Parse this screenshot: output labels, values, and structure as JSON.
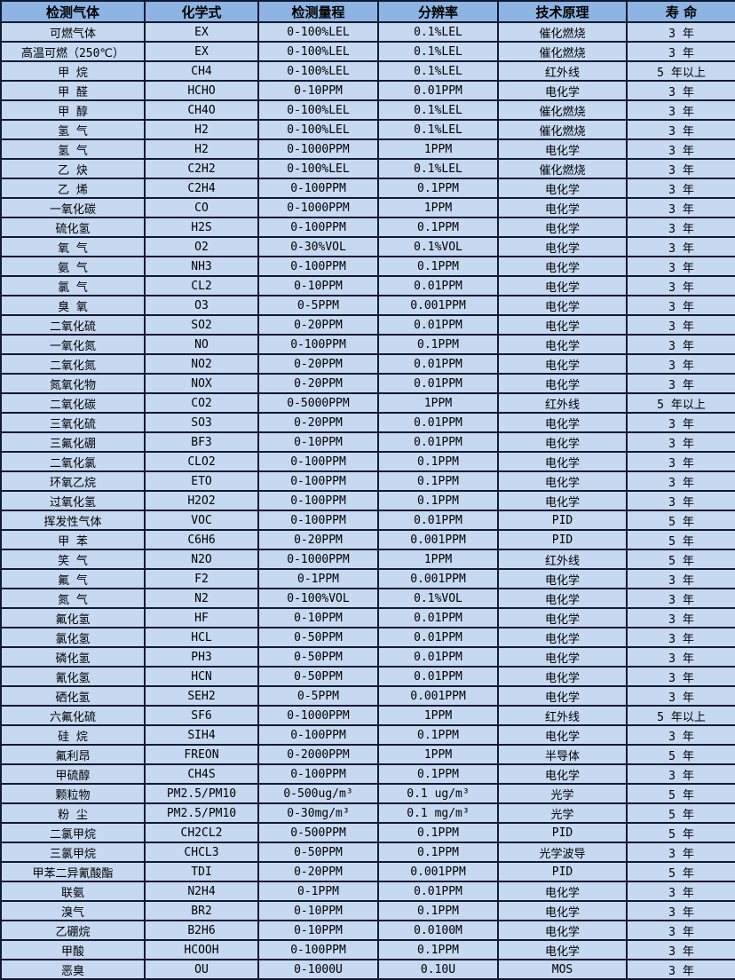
{
  "colors": {
    "header_bg": "#8db4e2",
    "row_bg": "#c6d9f1",
    "grid_border": "#121a33",
    "text": "#000000"
  },
  "table": {
    "columns": [
      {
        "key": "gas-name",
        "label": "检测气体"
      },
      {
        "key": "formula",
        "label": "化学式"
      },
      {
        "key": "range",
        "label": "检测量程"
      },
      {
        "key": "resolution",
        "label": "分辨率"
      },
      {
        "key": "principle",
        "label": "技术原理"
      },
      {
        "key": "lifespan",
        "label": "寿 命"
      }
    ],
    "rows": [
      [
        "可燃气体",
        "EX",
        "0-100%LEL",
        "0.1%LEL",
        "催化燃烧",
        "3 年"
      ],
      [
        "高温可燃（250℃）",
        "EX",
        "0-100%LEL",
        "0.1%LEL",
        "催化燃烧",
        "3 年"
      ],
      [
        "甲 烷",
        "CH4",
        "0-100%LEL",
        "0.1%LEL",
        "红外线",
        "5 年以上"
      ],
      [
        "甲 醛",
        "HCHO",
        "0-10PPM",
        "0.01PPM",
        "电化学",
        "3 年"
      ],
      [
        "甲 醇",
        "CH4O",
        "0-100%LEL",
        "0.1%LEL",
        "催化燃烧",
        "3 年"
      ],
      [
        "氢 气",
        "H2",
        "0-100%LEL",
        "0.1%LEL",
        "催化燃烧",
        "3 年"
      ],
      [
        "氢 气",
        "H2",
        "0-1000PPM",
        "1PPM",
        "电化学",
        "3 年"
      ],
      [
        "乙 炔",
        "C2H2",
        "0-100%LEL",
        "0.1%LEL",
        "催化燃烧",
        "3 年"
      ],
      [
        "乙 烯",
        "C2H4",
        "0-100PPM",
        "0.1PPM",
        "电化学",
        "3 年"
      ],
      [
        "一氧化碳",
        "CO",
        "0-1000PPM",
        "1PPM",
        "电化学",
        "3 年"
      ],
      [
        "硫化氢",
        "H2S",
        "0-100PPM",
        "0.1PPM",
        "电化学",
        "3 年"
      ],
      [
        "氧 气",
        "O2",
        "0-30%VOL",
        "0.1%VOL",
        "电化学",
        "3 年"
      ],
      [
        "氨 气",
        "NH3",
        "0-100PPM",
        "0.1PPM",
        "电化学",
        "3 年"
      ],
      [
        "氯 气",
        "CL2",
        "0-10PPM",
        "0.01PPM",
        "电化学",
        "3 年"
      ],
      [
        "臭 氧",
        "O3",
        "0-5PPM",
        "0.001PPM",
        "电化学",
        "3 年"
      ],
      [
        "二氧化硫",
        "SO2",
        "0-20PPM",
        "0.01PPM",
        "电化学",
        "3 年"
      ],
      [
        "一氧化氮",
        "NO",
        "0-100PPM",
        "0.1PPM",
        "电化学",
        "3 年"
      ],
      [
        "二氧化氮",
        "NO2",
        "0-20PPM",
        "0.01PPM",
        "电化学",
        "3 年"
      ],
      [
        "氮氧化物",
        "NOX",
        "0-20PPM",
        "0.01PPM",
        "电化学",
        "3 年"
      ],
      [
        "二氧化碳",
        "CO2",
        "0-5000PPM",
        "1PPM",
        "红外线",
        "5 年以上"
      ],
      [
        "三氧化硫",
        "SO3",
        "0-20PPM",
        "0.01PPM",
        "电化学",
        "3 年"
      ],
      [
        "三氟化硼",
        "BF3",
        "0-10PPM",
        "0.01PPM",
        "电化学",
        "3 年"
      ],
      [
        "二氧化氯",
        "CLO2",
        "0-100PPM",
        "0.1PPM",
        "电化学",
        "3 年"
      ],
      [
        "环氧乙烷",
        "ETO",
        "0-100PPM",
        "0.1PPM",
        "电化学",
        "3 年"
      ],
      [
        "过氧化氢",
        "H2O2",
        "0-100PPM",
        "0.1PPM",
        "电化学",
        "3 年"
      ],
      [
        "挥发性气体",
        "VOC",
        "0-100PPM",
        "0.01PPM",
        "PID",
        "5 年"
      ],
      [
        "甲 苯",
        "C6H6",
        "0-20PPM",
        "0.001PPM",
        "PID",
        "5 年"
      ],
      [
        "笑 气",
        "N2O",
        "0-1000PPM",
        "1PPM",
        "红外线",
        "5 年"
      ],
      [
        "氟 气",
        "F2",
        "0-1PPM",
        "0.001PPM",
        "电化学",
        "3 年"
      ],
      [
        "氮 气",
        "N2",
        "0-100%VOL",
        "0.1%VOL",
        "电化学",
        "3 年"
      ],
      [
        "氟化氢",
        "HF",
        "0-10PPM",
        "0.01PPM",
        "电化学",
        "3 年"
      ],
      [
        "氯化氢",
        "HCL",
        "0-50PPM",
        "0.01PPM",
        "电化学",
        "3 年"
      ],
      [
        "磷化氢",
        "PH3",
        "0-50PPM",
        "0.01PPM",
        "电化学",
        "3 年"
      ],
      [
        "氰化氢",
        "HCN",
        "0-50PPM",
        "0.01PPM",
        "电化学",
        "3 年"
      ],
      [
        "硒化氢",
        "SEH2",
        "0-5PPM",
        "0.001PPM",
        "电化学",
        "3 年"
      ],
      [
        "六氟化硫",
        "SF6",
        "0-1000PPM",
        "1PPM",
        "红外线",
        "5 年以上"
      ],
      [
        "硅 烷",
        "SIH4",
        "0-100PPM",
        "0.1PPM",
        "电化学",
        "3 年"
      ],
      [
        "氟利昂",
        "FREON",
        "0-2000PPM",
        "1PPM",
        "半导体",
        "5 年"
      ],
      [
        "甲硫醇",
        "CH4S",
        "0-100PPM",
        "0.1PPM",
        "电化学",
        "3 年"
      ],
      [
        "颗粒物",
        "PM2.5/PM10",
        "0-500ug/m³",
        "0.1 ug/m³",
        "光学",
        "5 年"
      ],
      [
        "粉 尘",
        "PM2.5/PM10",
        "0-30mg/m³",
        "0.1 mg/m³",
        "光学",
        "5 年"
      ],
      [
        "二氯甲烷",
        "CH2CL2",
        "0-500PPM",
        "0.1PPM",
        "PID",
        "5 年"
      ],
      [
        "三氯甲烷",
        "CHCL3",
        "0-50PPM",
        "0.1PPM",
        "光学波导",
        "3 年"
      ],
      [
        "甲苯二异氰酸酯",
        "TDI",
        "0-20PPM",
        "0.001PPM",
        "PID",
        "5 年"
      ],
      [
        "联氨",
        "N2H4",
        "0-1PPM",
        "0.01PPM",
        "电化学",
        "3 年"
      ],
      [
        "溴气",
        "BR2",
        "0-10PPM",
        "0.1PPM",
        "电化学",
        "3 年"
      ],
      [
        "乙硼烷",
        "B2H6",
        "0-10PPM",
        "0.0100M",
        "电化学",
        "3 年"
      ],
      [
        "甲酸",
        "HCOOH",
        "0-100PPM",
        "0.1PPM",
        "电化学",
        "3 年"
      ],
      [
        "恶臭",
        "OU",
        "0-1000U",
        "0.10U",
        "MOS",
        "3 年"
      ]
    ]
  }
}
